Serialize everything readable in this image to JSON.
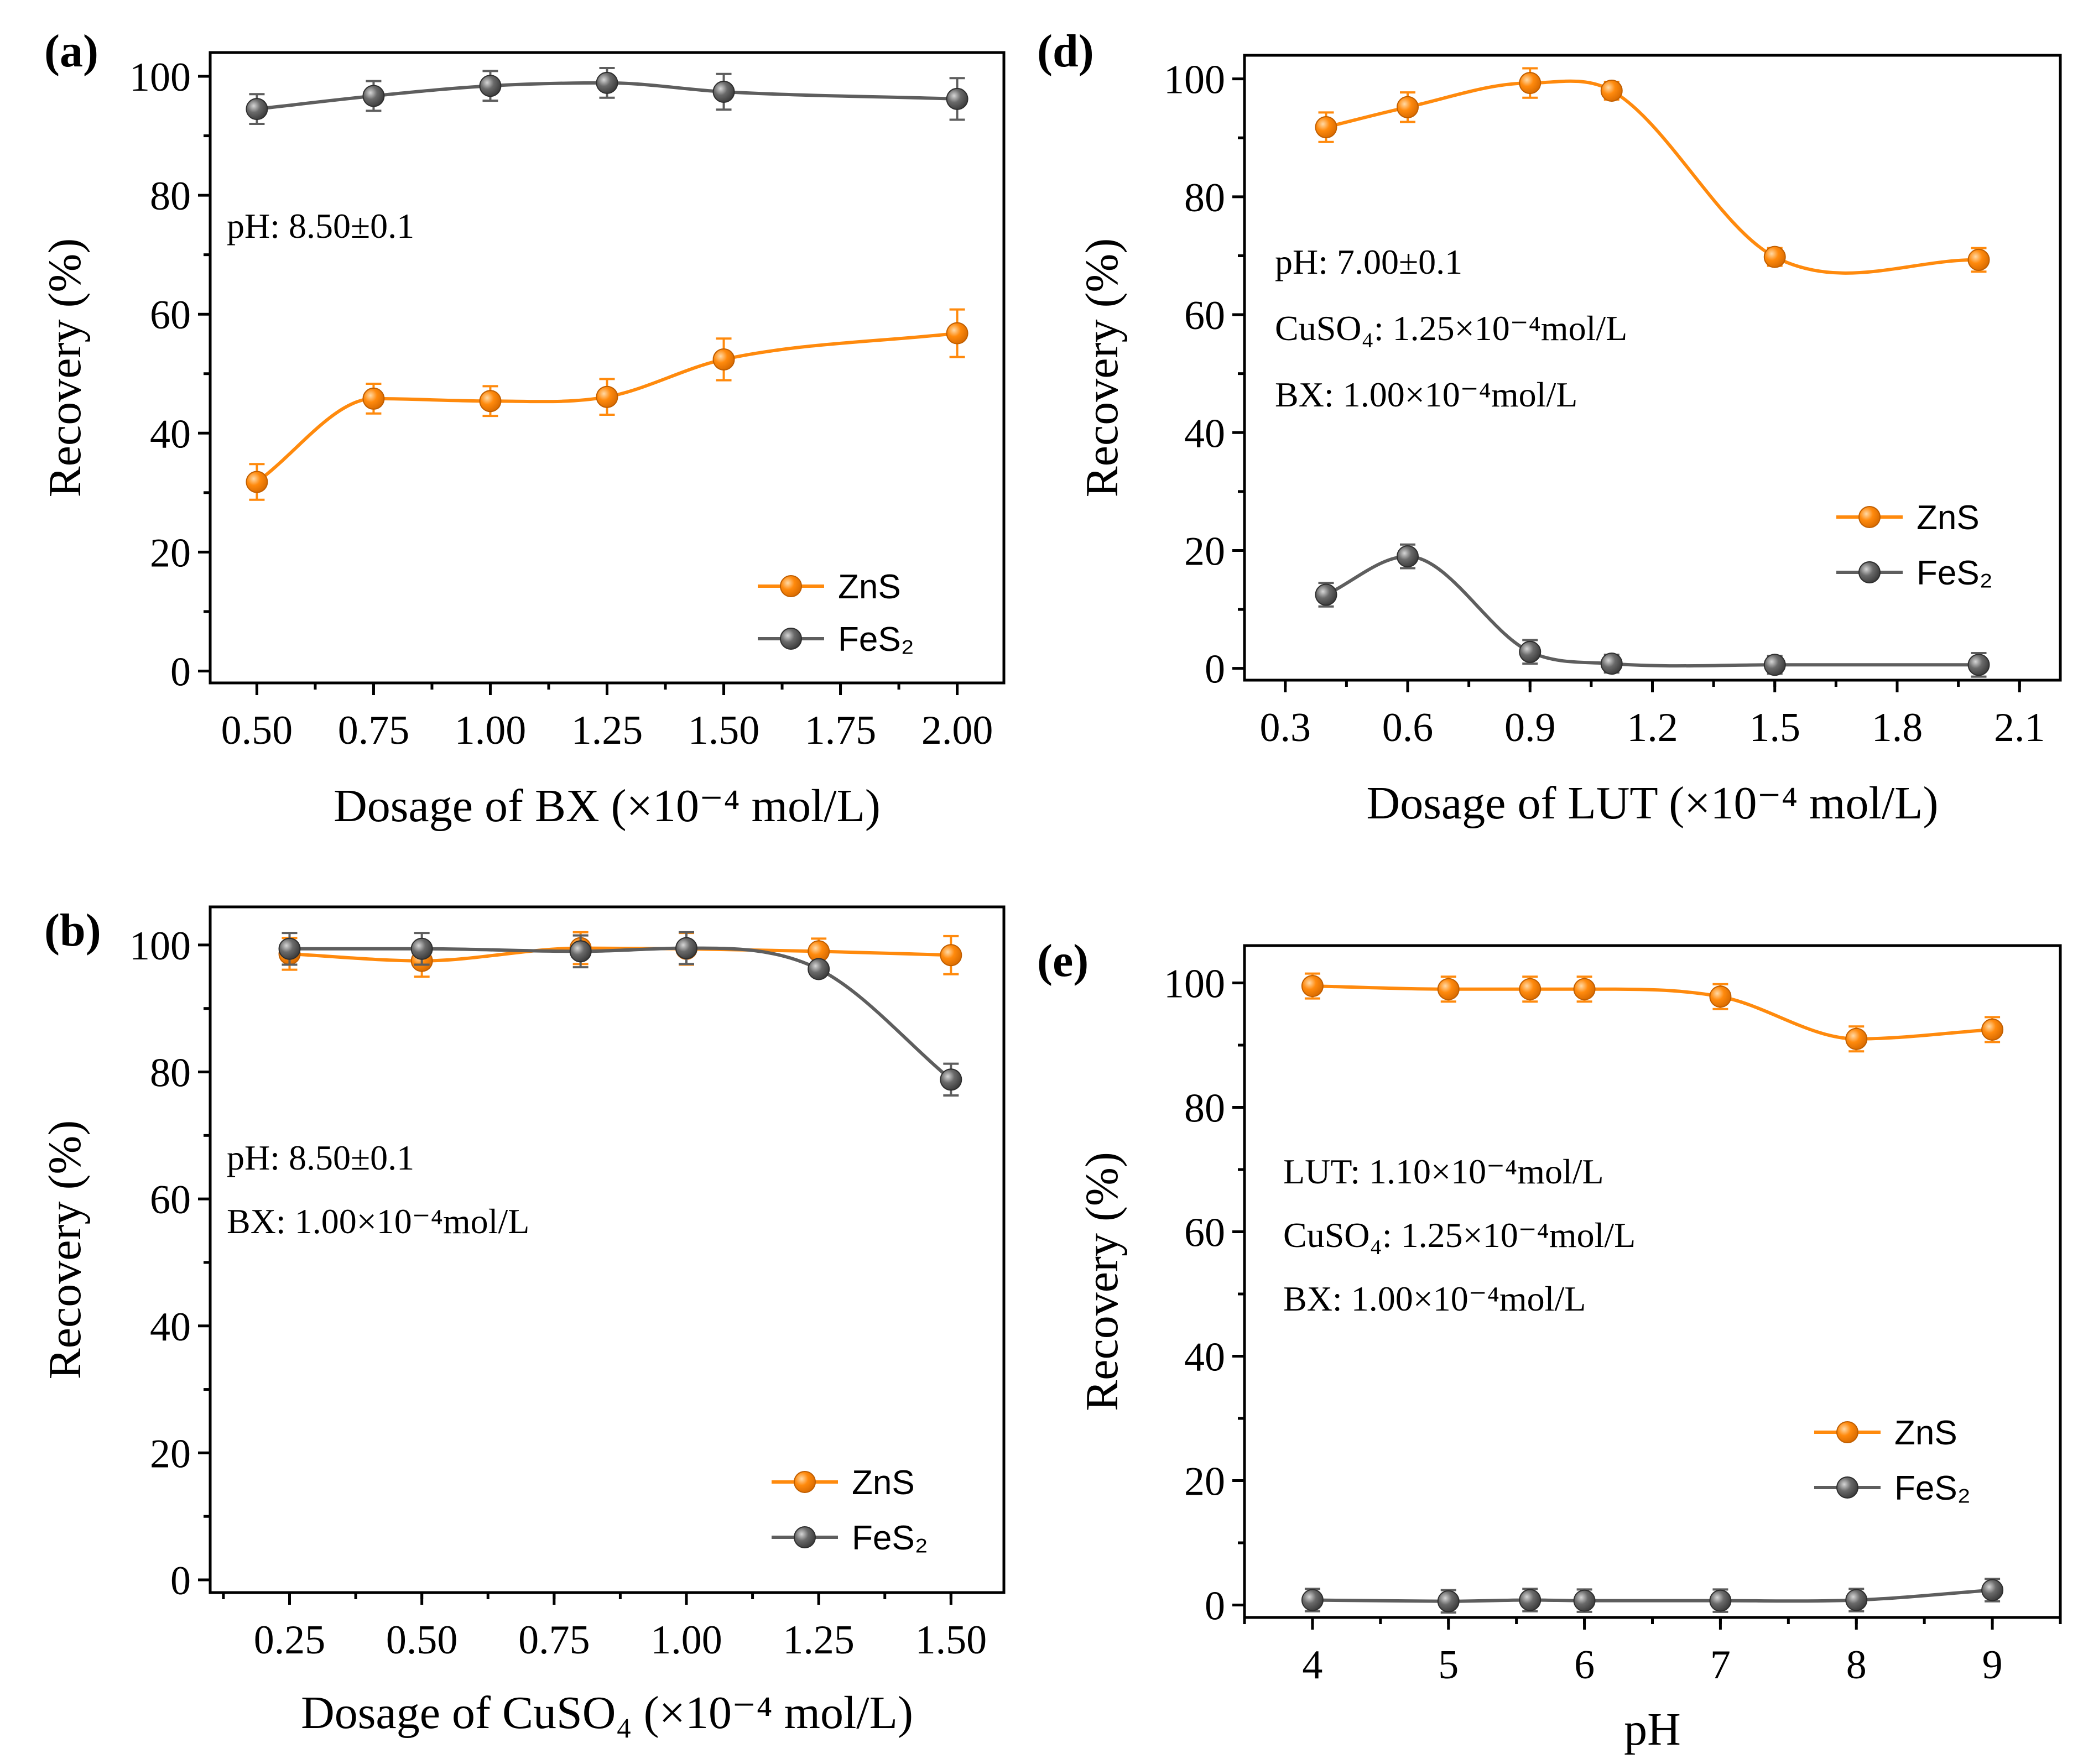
{
  "colors": {
    "zns": "#ff8a0d",
    "fes2": "#5e5e5e"
  },
  "chart_data": [
    {
      "panel": "(a)",
      "type": "line",
      "xlabel": "Dosage of BX (×10⁻⁴ mol/L)",
      "ylabel": "Recovery (%)",
      "xlim": [
        0.4,
        2.1
      ],
      "ylim": [
        -2,
        104
      ],
      "x_ticks": [
        0.5,
        0.75,
        1.0,
        1.25,
        1.5,
        1.75,
        2.0
      ],
      "x_tick_labels": [
        "0.50",
        "0.75",
        "1.00",
        "1.25",
        "1.50",
        "1.75",
        "2.00"
      ],
      "y_ticks": [
        0,
        20,
        40,
        60,
        80,
        100
      ],
      "y_tick_labels": [
        "0",
        "20",
        "40",
        "60",
        "80",
        "100"
      ],
      "annotations": [
        "pH: 8.50±0.1"
      ],
      "legend": [
        "ZnS",
        "FeS₂"
      ],
      "legend_position": "lower-right",
      "series": [
        {
          "name": "ZnS",
          "x": [
            0.5,
            0.75,
            1.0,
            1.25,
            1.5,
            2.0
          ],
          "values": [
            31.8,
            45.8,
            45.4,
            46.1,
            52.4,
            56.8
          ],
          "errors": [
            3,
            2.5,
            2.5,
            3,
            3.5,
            4
          ]
        },
        {
          "name": "FeS₂",
          "x": [
            0.5,
            0.75,
            1.0,
            1.25,
            1.5,
            2.0
          ],
          "values": [
            94.5,
            96.7,
            98.4,
            98.9,
            97.4,
            96.2
          ],
          "errors": [
            2.5,
            2.5,
            2.5,
            2.5,
            3,
            3.5
          ]
        }
      ]
    },
    {
      "panel": "(b)",
      "type": "line",
      "xlabel": "Dosage of CuSO₄ (×10⁻⁴ mol/L)",
      "ylabel": "Recovery (%)",
      "xlim": [
        0.1,
        1.6
      ],
      "ylim": [
        -2,
        106
      ],
      "x_ticks": [
        0.25,
        0.5,
        0.75,
        1.0,
        1.25,
        1.5
      ],
      "x_tick_labels": [
        "0.25",
        "0.50",
        "0.75",
        "1.00",
        "1.25",
        "1.50"
      ],
      "y_ticks": [
        0,
        20,
        40,
        60,
        80,
        100
      ],
      "y_tick_labels": [
        "0",
        "20",
        "40",
        "60",
        "80",
        "100"
      ],
      "annotations": [
        "pH: 8.50±0.1",
        "BX: 1.00×10⁻⁴mol/L"
      ],
      "legend": [
        "ZnS",
        "FeS₂"
      ],
      "legend_position": "lower-right",
      "series": [
        {
          "name": "ZnS",
          "x": [
            0.25,
            0.5,
            0.8,
            1.0,
            1.25,
            1.5
          ],
          "values": [
            98.6,
            97.5,
            99.5,
            99.4,
            99.0,
            98.4
          ],
          "errors": [
            2.5,
            2.5,
            2.5,
            2.5,
            2,
            3
          ]
        },
        {
          "name": "FeS₂",
          "x": [
            0.25,
            0.5,
            0.8,
            1.0,
            1.25,
            1.5
          ],
          "values": [
            99.4,
            99.4,
            99.0,
            99.5,
            96.2,
            78.8
          ],
          "errors": [
            2.5,
            2.5,
            2.5,
            2.5,
            1,
            2.5
          ]
        }
      ]
    },
    {
      "panel": "(d)",
      "type": "line",
      "xlabel": "Dosage of LUT (×10⁻⁴ mol/L)",
      "ylabel": "Recovery (%)",
      "xlim": [
        0.2,
        2.2
      ],
      "ylim": [
        -2,
        104
      ],
      "x_ticks": [
        0.3,
        0.6,
        0.9,
        1.2,
        1.5,
        1.8,
        2.1
      ],
      "x_tick_labels": [
        "0.3",
        "0.6",
        "0.9",
        "1.2",
        "1.5",
        "1.8",
        "2.1"
      ],
      "y_ticks": [
        0,
        20,
        40,
        60,
        80,
        100
      ],
      "y_tick_labels": [
        "0",
        "20",
        "40",
        "60",
        "80",
        "100"
      ],
      "annotations": [
        "pH: 7.00±0.1",
        "CuSO₄: 1.25×10⁻⁴mol/L",
        "BX: 1.00×10⁻⁴mol/L"
      ],
      "legend": [
        "ZnS",
        "FeS₂"
      ],
      "legend_position": "right",
      "series": [
        {
          "name": "ZnS",
          "x": [
            0.4,
            0.6,
            0.9,
            1.1,
            1.5,
            2.0
          ],
          "values": [
            91.8,
            95.2,
            99.3,
            98.0,
            69.8,
            69.3
          ],
          "errors": [
            2.5,
            2.5,
            2.5,
            1.5,
            1.5,
            2
          ]
        },
        {
          "name": "FeS₂",
          "x": [
            0.4,
            0.6,
            0.9,
            1.1,
            1.5,
            2.0
          ],
          "values": [
            12.5,
            19.0,
            2.8,
            0.8,
            0.6,
            0.6
          ],
          "errors": [
            2,
            2,
            2,
            1.5,
            1.5,
            2
          ]
        }
      ]
    },
    {
      "panel": "(e)",
      "type": "line",
      "xlabel": "pH",
      "ylabel": "Recovery (%)",
      "xlim": [
        3.5,
        9.5
      ],
      "ylim": [
        -2,
        106
      ],
      "x_ticks": [
        4,
        5,
        6,
        7,
        8,
        9
      ],
      "x_tick_labels": [
        "4",
        "5",
        "6",
        "7",
        "8",
        "9"
      ],
      "y_ticks": [
        0,
        20,
        40,
        60,
        80,
        100
      ],
      "y_tick_labels": [
        "0",
        "20",
        "40",
        "60",
        "80",
        "100"
      ],
      "annotations": [
        "LUT: 1.10×10⁻⁴mol/L",
        "CuSO₄: 1.25×10⁻⁴mol/L",
        "BX: 1.00×10⁻⁴mol/L"
      ],
      "legend": [
        "ZnS",
        "FeS₂"
      ],
      "legend_position": "lower-right",
      "series": [
        {
          "name": "ZnS",
          "x": [
            4,
            5,
            5.6,
            6,
            7,
            8,
            9
          ],
          "values": [
            99.5,
            99.0,
            99.0,
            99.0,
            97.8,
            91.0,
            92.5
          ],
          "errors": [
            2,
            2,
            2,
            2,
            2,
            2,
            2
          ]
        },
        {
          "name": "FeS₂",
          "x": [
            4,
            5,
            5.6,
            6,
            7,
            8,
            9
          ],
          "values": [
            0.8,
            0.6,
            0.8,
            0.7,
            0.7,
            0.8,
            2.4
          ],
          "errors": [
            1.8,
            1.8,
            1.8,
            1.8,
            1.8,
            1.8,
            1.8
          ]
        }
      ]
    }
  ]
}
